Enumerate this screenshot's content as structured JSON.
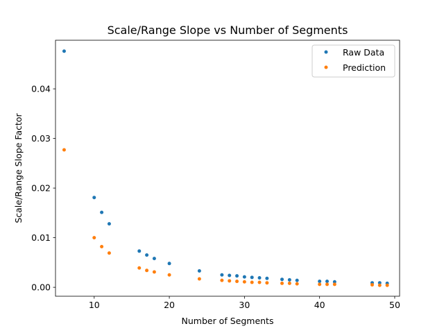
{
  "chart_data": {
    "type": "scatter",
    "title": "Scale/Range Slope vs Number of Segments",
    "xlabel": "Number of Segments",
    "ylabel": "Scale/Range Slope Factor",
    "xlim": [
      4.85,
      50.65
    ],
    "ylim": [
      -0.0018,
      0.0498
    ],
    "xticks": [
      10,
      20,
      30,
      40,
      50
    ],
    "xtick_labels": [
      "10",
      "20",
      "30",
      "40",
      "50"
    ],
    "yticks": [
      0.0,
      0.01,
      0.02,
      0.03,
      0.04
    ],
    "ytick_labels": [
      "0.00",
      "0.01",
      "0.02",
      "0.03",
      "0.04"
    ],
    "grid": false,
    "legend_position": "top-right",
    "series": [
      {
        "name": "Raw Data",
        "color": "#1f77b4",
        "points": [
          [
            6,
            0.0476
          ],
          [
            10,
            0.0181
          ],
          [
            11,
            0.0151
          ],
          [
            12,
            0.0128
          ],
          [
            16,
            0.0073
          ],
          [
            17,
            0.0065
          ],
          [
            18,
            0.0058
          ],
          [
            20,
            0.0048
          ],
          [
            24,
            0.0033
          ],
          [
            27,
            0.0025
          ],
          [
            28,
            0.0024
          ],
          [
            29,
            0.0023
          ],
          [
            30,
            0.0021
          ],
          [
            31,
            0.002
          ],
          [
            32,
            0.0019
          ],
          [
            33,
            0.0018
          ],
          [
            35,
            0.0016
          ],
          [
            36,
            0.0015
          ],
          [
            37,
            0.0014
          ],
          [
            40,
            0.0012
          ],
          [
            41,
            0.0012
          ],
          [
            42,
            0.0011
          ],
          [
            47,
            0.0009
          ],
          [
            48,
            0.0009
          ],
          [
            49,
            0.0008
          ]
        ]
      },
      {
        "name": "Prediction",
        "color": "#ff7f0e",
        "points": [
          [
            6,
            0.0277
          ],
          [
            10,
            0.01
          ],
          [
            11,
            0.0082
          ],
          [
            12,
            0.0069
          ],
          [
            16,
            0.0039
          ],
          [
            17,
            0.0034
          ],
          [
            18,
            0.0031
          ],
          [
            20,
            0.0025
          ],
          [
            24,
            0.0017
          ],
          [
            27,
            0.0014
          ],
          [
            28,
            0.0013
          ],
          [
            29,
            0.0012
          ],
          [
            30,
            0.0011
          ],
          [
            31,
            0.001
          ],
          [
            32,
            0.001
          ],
          [
            33,
            0.0009
          ],
          [
            35,
            0.0008
          ],
          [
            36,
            0.0008
          ],
          [
            37,
            0.0007
          ],
          [
            40,
            0.0006
          ],
          [
            41,
            0.0006
          ],
          [
            42,
            0.0006
          ],
          [
            47,
            0.0005
          ],
          [
            48,
            0.0004
          ],
          [
            49,
            0.0004
          ]
        ]
      }
    ]
  }
}
